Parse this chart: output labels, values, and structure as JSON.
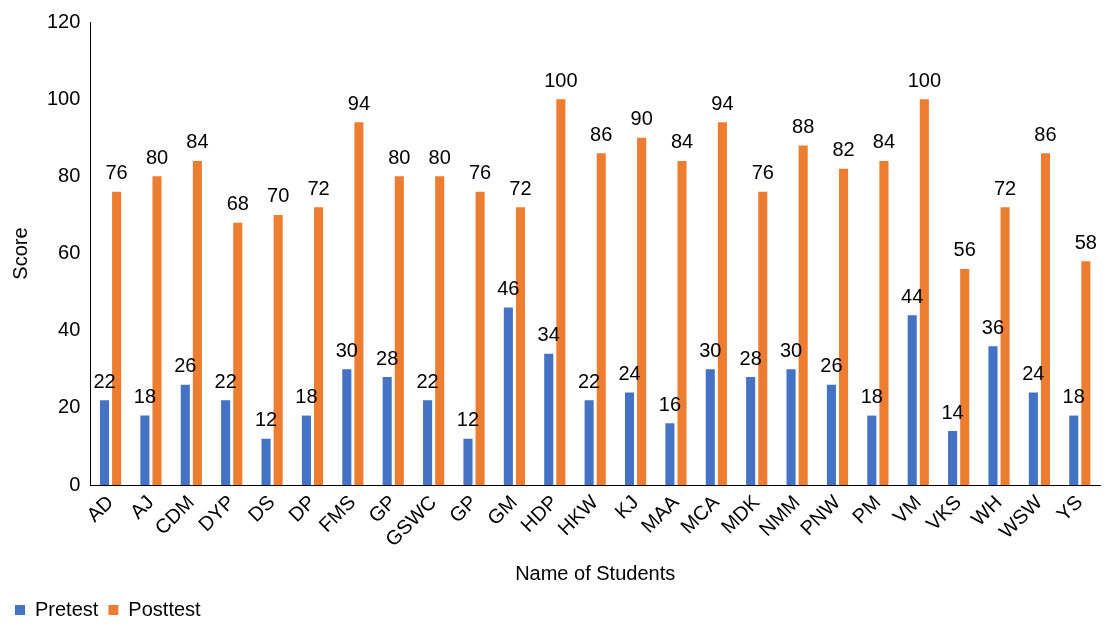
{
  "chart_data": {
    "type": "bar",
    "xlabel": "Name of Students",
    "ylabel": "Score",
    "categories": [
      "AD",
      "AJ",
      "CDM",
      "DYP",
      "DS",
      "DP",
      "FMS",
      "GP",
      "GSWC",
      "GP",
      "GM",
      "HDP",
      "HKW",
      "KJ",
      "MAA",
      "MCA",
      "MDK",
      "NMM",
      "PNW",
      "PM",
      "VM",
      "VKS",
      "WH",
      "WSW",
      "YS"
    ],
    "series": [
      {
        "name": "Pretest",
        "color": "#4472c4",
        "values": [
          22,
          18,
          26,
          22,
          12,
          18,
          30,
          28,
          22,
          12,
          46,
          34,
          22,
          24,
          16,
          30,
          28,
          30,
          26,
          18,
          44,
          14,
          36,
          24,
          18
        ]
      },
      {
        "name": "Posttest",
        "color": "#ed7d31",
        "values": [
          76,
          80,
          84,
          68,
          70,
          72,
          94,
          80,
          80,
          76,
          72,
          100,
          86,
          90,
          84,
          94,
          76,
          88,
          82,
          84,
          100,
          56,
          72,
          86,
          58
        ]
      }
    ],
    "ylim": [
      0,
      120
    ],
    "yticks": [
      0,
      20,
      40,
      60,
      80,
      100,
      120
    ],
    "grid": false,
    "legend": "bottom left",
    "data_labels": true
  }
}
